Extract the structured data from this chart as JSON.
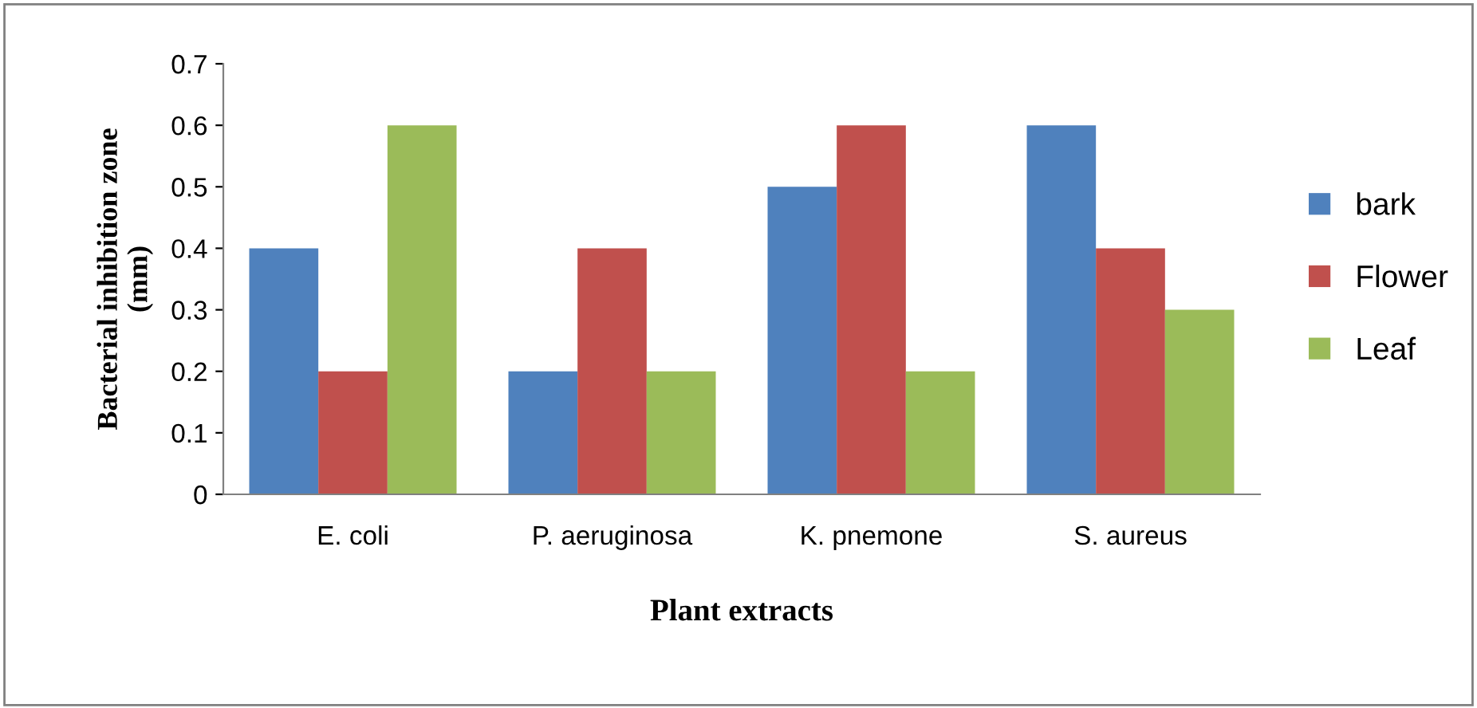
{
  "chart_data": {
    "type": "bar",
    "xlabel": "Plant extracts",
    "ylabel": "Bacterial inhibition zone\n(mm)",
    "categories": [
      "E. coli",
      "P. aeruginosa",
      "K. pnemone",
      "S. aureus"
    ],
    "series": [
      {
        "name": "bark",
        "color": "#4f81bd",
        "values": [
          0.4,
          0.2,
          0.5,
          0.6
        ]
      },
      {
        "name": "Flower",
        "color": "#c0504d",
        "values": [
          0.2,
          0.4,
          0.6,
          0.4
        ]
      },
      {
        "name": "Leaf",
        "color": "#9bbb59",
        "values": [
          0.6,
          0.2,
          0.2,
          0.3
        ]
      }
    ],
    "ylim": [
      0,
      0.7
    ],
    "yticks": [
      0,
      0.1,
      0.2,
      0.3,
      0.4,
      0.5,
      0.6,
      0.7
    ],
    "grid": false,
    "legend": "right"
  }
}
